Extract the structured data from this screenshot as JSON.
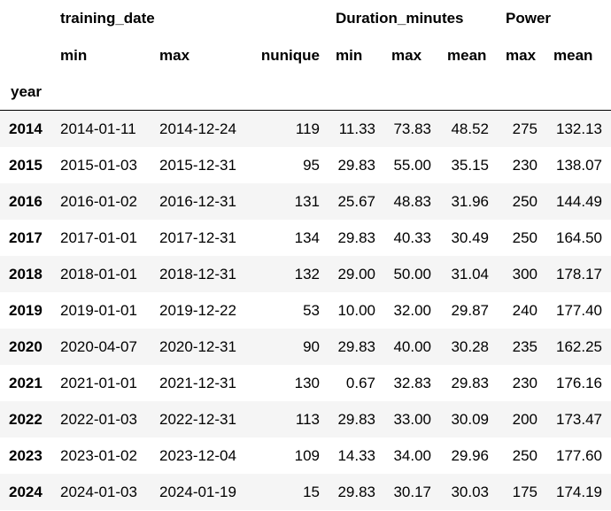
{
  "table": {
    "header_top": {
      "training_date": "training_date",
      "duration": "Duration_minutes",
      "power": "Power"
    },
    "header_stats": [
      "min",
      "max",
      "nunique",
      "min",
      "max",
      "mean",
      "max",
      "mean"
    ],
    "index_name": "year",
    "rows": [
      {
        "year": "2014",
        "date_min": "2014-01-11",
        "date_max": "2014-12-24",
        "nunique": "119",
        "dur_min": "11.33",
        "dur_max": "73.83",
        "dur_mean": "48.52",
        "power_max": "275",
        "power_mean": "132.13"
      },
      {
        "year": "2015",
        "date_min": "2015-01-03",
        "date_max": "2015-12-31",
        "nunique": "95",
        "dur_min": "29.83",
        "dur_max": "55.00",
        "dur_mean": "35.15",
        "power_max": "230",
        "power_mean": "138.07"
      },
      {
        "year": "2016",
        "date_min": "2016-01-02",
        "date_max": "2016-12-31",
        "nunique": "131",
        "dur_min": "25.67",
        "dur_max": "48.83",
        "dur_mean": "31.96",
        "power_max": "250",
        "power_mean": "144.49"
      },
      {
        "year": "2017",
        "date_min": "2017-01-01",
        "date_max": "2017-12-31",
        "nunique": "134",
        "dur_min": "29.83",
        "dur_max": "40.33",
        "dur_mean": "30.49",
        "power_max": "250",
        "power_mean": "164.50"
      },
      {
        "year": "2018",
        "date_min": "2018-01-01",
        "date_max": "2018-12-31",
        "nunique": "132",
        "dur_min": "29.00",
        "dur_max": "50.00",
        "dur_mean": "31.04",
        "power_max": "300",
        "power_mean": "178.17"
      },
      {
        "year": "2019",
        "date_min": "2019-01-01",
        "date_max": "2019-12-22",
        "nunique": "53",
        "dur_min": "10.00",
        "dur_max": "32.00",
        "dur_mean": "29.87",
        "power_max": "240",
        "power_mean": "177.40"
      },
      {
        "year": "2020",
        "date_min": "2020-04-07",
        "date_max": "2020-12-31",
        "nunique": "90",
        "dur_min": "29.83",
        "dur_max": "40.00",
        "dur_mean": "30.28",
        "power_max": "235",
        "power_mean": "162.25"
      },
      {
        "year": "2021",
        "date_min": "2021-01-01",
        "date_max": "2021-12-31",
        "nunique": "130",
        "dur_min": "0.67",
        "dur_max": "32.83",
        "dur_mean": "29.83",
        "power_max": "230",
        "power_mean": "176.16"
      },
      {
        "year": "2022",
        "date_min": "2022-01-03",
        "date_max": "2022-12-31",
        "nunique": "113",
        "dur_min": "29.83",
        "dur_max": "33.00",
        "dur_mean": "30.09",
        "power_max": "200",
        "power_mean": "173.47"
      },
      {
        "year": "2023",
        "date_min": "2023-01-02",
        "date_max": "2023-12-04",
        "nunique": "109",
        "dur_min": "14.33",
        "dur_max": "34.00",
        "dur_mean": "29.96",
        "power_max": "250",
        "power_mean": "177.60"
      },
      {
        "year": "2024",
        "date_min": "2024-01-03",
        "date_max": "2024-01-19",
        "nunique": "15",
        "dur_min": "29.83",
        "dur_max": "30.17",
        "dur_mean": "30.03",
        "power_max": "175",
        "power_mean": "174.19"
      }
    ]
  }
}
